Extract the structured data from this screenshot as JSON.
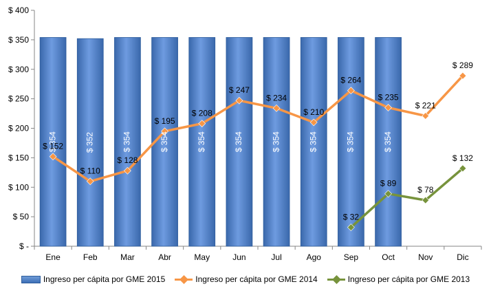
{
  "chart_data": {
    "type": "bar",
    "categories": [
      "Ene",
      "Feb",
      "Mar",
      "Abr",
      "May",
      "Jun",
      "Jul",
      "Ago",
      "Sep",
      "Oct",
      "Nov",
      "Dic"
    ],
    "ylim": [
      0,
      400
    ],
    "yticks": [
      0,
      50,
      100,
      150,
      200,
      250,
      300,
      350,
      400
    ],
    "ytick_labels": [
      "$ -",
      "$ 50",
      "$ 100",
      "$ 150",
      "$ 200",
      "$ 250",
      "$ 300",
      "$ 350",
      "$ 400"
    ],
    "series": [
      {
        "name": "Ingreso per cápita por GME 2015",
        "kind": "bar",
        "color": "#4f81bd",
        "values": [
          354,
          352,
          354,
          354,
          354,
          354,
          354,
          354,
          354,
          354,
          null,
          null
        ],
        "labels": [
          "$ 354",
          "$ 352",
          "$ 354",
          "$ 354",
          "$ 354",
          "$ 354",
          "$ 354",
          "$ 354",
          "$ 354",
          "$ 354",
          null,
          null
        ]
      },
      {
        "name": "Ingreso per cápita por GME 2014",
        "kind": "line",
        "color": "#f79646",
        "values": [
          152,
          110,
          128,
          195,
          208,
          247,
          234,
          210,
          264,
          235,
          221,
          289
        ],
        "labels": [
          "$ 152",
          "$ 110",
          "$ 128",
          "$ 195",
          "$ 208",
          "$ 247",
          "$ 234",
          "$ 210",
          "$ 264",
          "$ 235",
          "$ 221",
          "$ 289"
        ]
      },
      {
        "name": "Ingreso per cápita por GME 2013",
        "kind": "line",
        "color": "#77933c",
        "values": [
          null,
          null,
          null,
          null,
          null,
          null,
          null,
          null,
          32,
          89,
          78,
          132
        ],
        "labels": [
          null,
          null,
          null,
          null,
          null,
          null,
          null,
          null,
          "$ 32",
          "$ 89",
          "$ 78",
          "$ 132"
        ]
      }
    ],
    "grid": false,
    "legend": "bottom"
  }
}
